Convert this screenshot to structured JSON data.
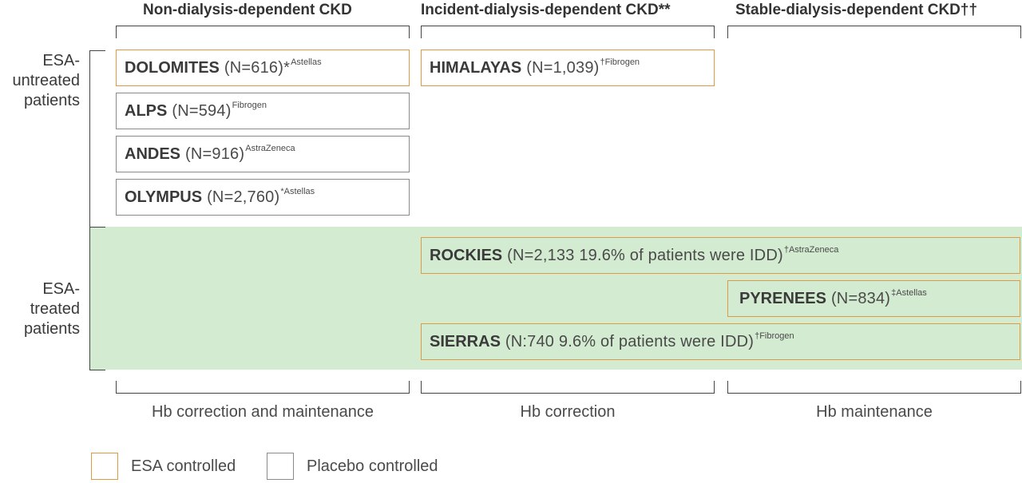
{
  "columns": [
    {
      "header": "Non-dialysis-dependent CKD",
      "footer": "Hb correction and maintenance"
    },
    {
      "header": "Incident-dialysis-dependent CKD**",
      "footer": "Hb correction"
    },
    {
      "header": "Stable-dialysis-dependent CKD††",
      "footer": "Hb maintenance"
    }
  ],
  "rows": [
    {
      "label_lines": [
        "ESA-",
        "untreated",
        "patients"
      ]
    },
    {
      "label_lines": [
        "ESA-",
        "treated",
        "patients"
      ]
    }
  ],
  "trials": [
    {
      "name": "DOLOMITES",
      "detail": "(N=616)*",
      "sponsor": "Astellas",
      "control": "ESA controlled"
    },
    {
      "name": "ALPS",
      "detail": "(N=594)",
      "sponsor": "Fibrogen",
      "control": "Placebo controlled"
    },
    {
      "name": "ANDES",
      "detail": "(N=916)",
      "sponsor": "AstraZeneca",
      "control": "Placebo controlled"
    },
    {
      "name": "OLYMPUS",
      "detail": "(N=2,760)",
      "sponsor": "*Astellas",
      "control": "Placebo controlled"
    },
    {
      "name": "HIMALAYAS",
      "detail": "(N=1,039)",
      "sponsor": "†Fibrogen",
      "control": "ESA controlled"
    },
    {
      "name": "ROCKIES",
      "detail": "(N=2,133  19.6% of patients were IDD)",
      "sponsor": "†AstraZeneca",
      "control": "ESA controlled"
    },
    {
      "name": "PYRENEES",
      "detail": "(N=834)",
      "sponsor": "‡Astellas",
      "control": "ESA controlled"
    },
    {
      "name": "SIERRAS",
      "detail": "(N:740  9.6% of patients were IDD)",
      "sponsor": "†Fibrogen",
      "control": "ESA controlled"
    }
  ],
  "legend": [
    {
      "label": "ESA controlled",
      "color": "#e09a42"
    },
    {
      "label": "Placebo controlled",
      "color": "#8a8a8a"
    }
  ],
  "colors": {
    "esa_border": "#e09a42",
    "placebo_border": "#8a8a8a",
    "esa_treated_band": "#d3ebd0"
  }
}
